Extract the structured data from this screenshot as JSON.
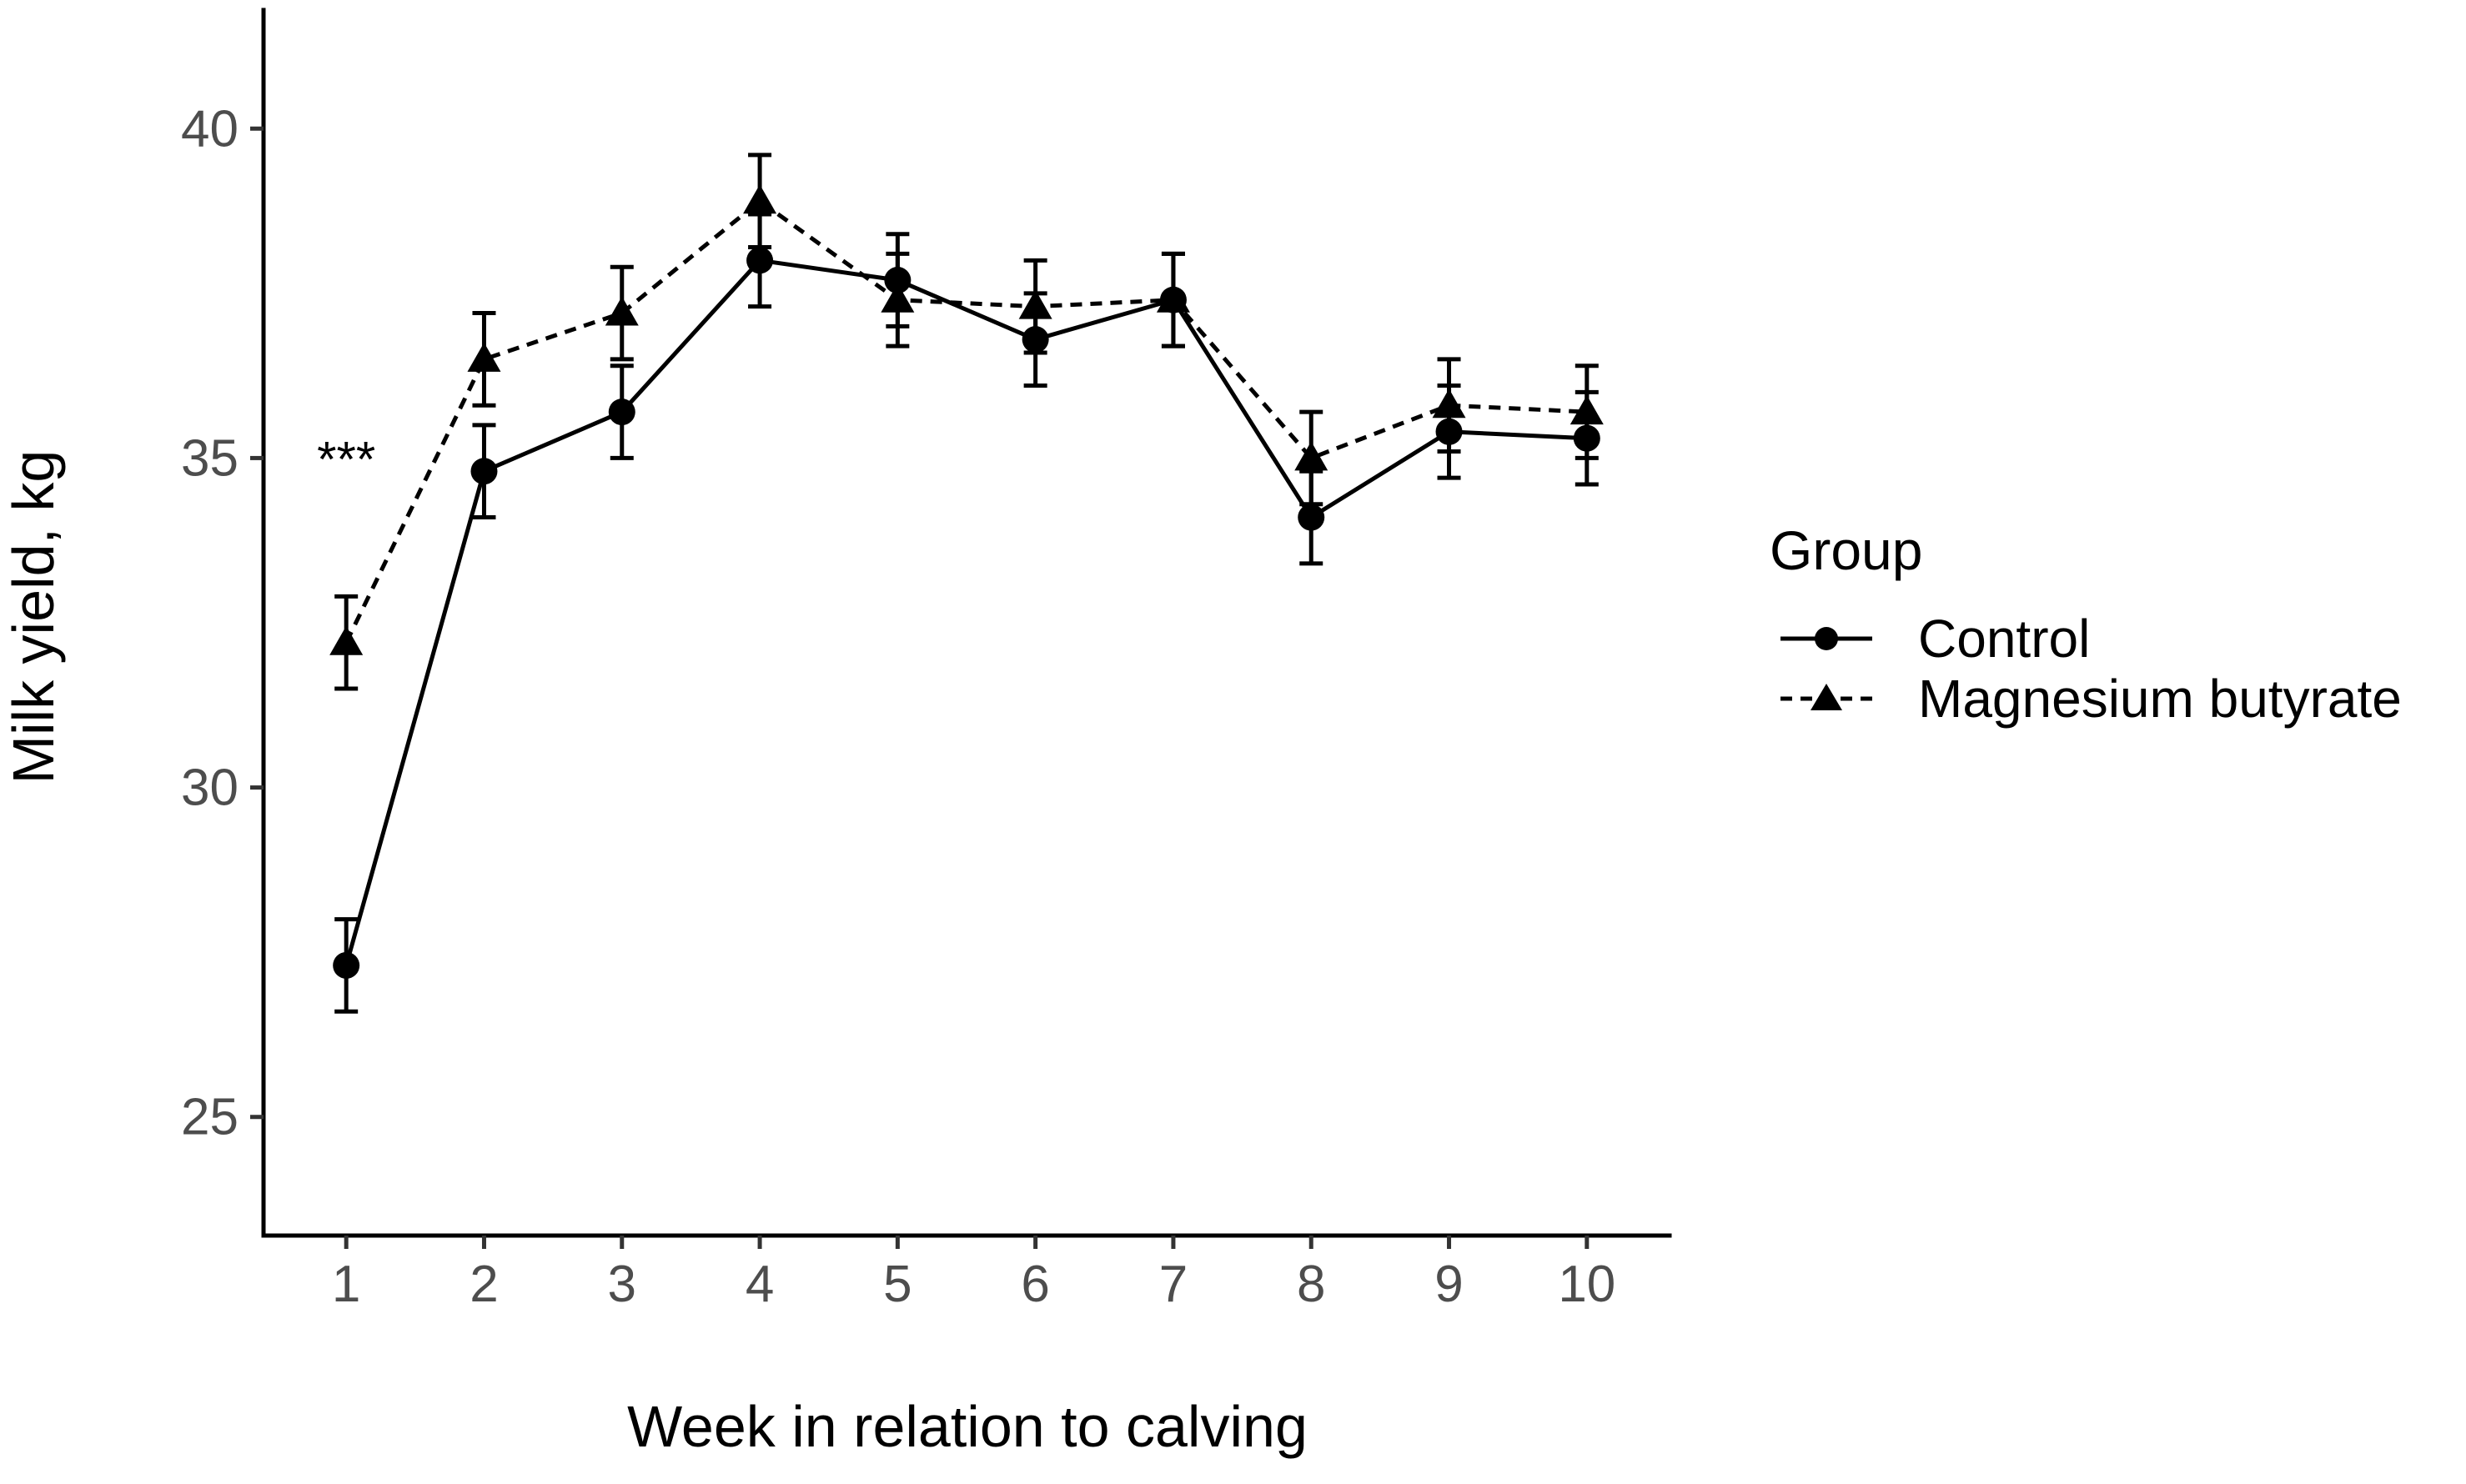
{
  "chart_data": {
    "type": "line",
    "title": "",
    "xlabel": "Week in relation to calving",
    "ylabel": "Milk yield, kg",
    "x": [
      1,
      2,
      3,
      4,
      5,
      6,
      7,
      8,
      9,
      10
    ],
    "xticks": [
      "1",
      "2",
      "3",
      "4",
      "5",
      "6",
      "7",
      "8",
      "9",
      "10"
    ],
    "xlim": [
      0.4,
      10.6
    ],
    "yticks": [
      25,
      30,
      35,
      40
    ],
    "ylim": [
      23.2,
      41.8
    ],
    "grid": false,
    "legend": {
      "title": "Group",
      "placement": "right"
    },
    "series": [
      {
        "name": "Control",
        "marker": "circle",
        "linestyle": "solid",
        "color": "#000000",
        "values": [
          27.3,
          34.8,
          35.7,
          38.0,
          37.7,
          36.8,
          37.4,
          34.1,
          35.4,
          35.3
        ],
        "errors": [
          0.7,
          0.7,
          0.7,
          0.7,
          0.7,
          0.7,
          0.7,
          0.7,
          0.7,
          0.7
        ]
      },
      {
        "name": "Magnesium butyrate",
        "marker": "triangle",
        "linestyle": "dashed",
        "color": "#000000",
        "values": [
          32.2,
          36.5,
          37.2,
          38.9,
          37.4,
          37.3,
          37.4,
          35.0,
          35.8,
          35.7
        ],
        "errors": [
          0.7,
          0.7,
          0.7,
          0.7,
          0.7,
          0.7,
          0.7,
          0.7,
          0.7,
          0.7
        ]
      }
    ],
    "annotations": [
      {
        "text": "***",
        "x": 1,
        "y": 35.1
      }
    ]
  }
}
